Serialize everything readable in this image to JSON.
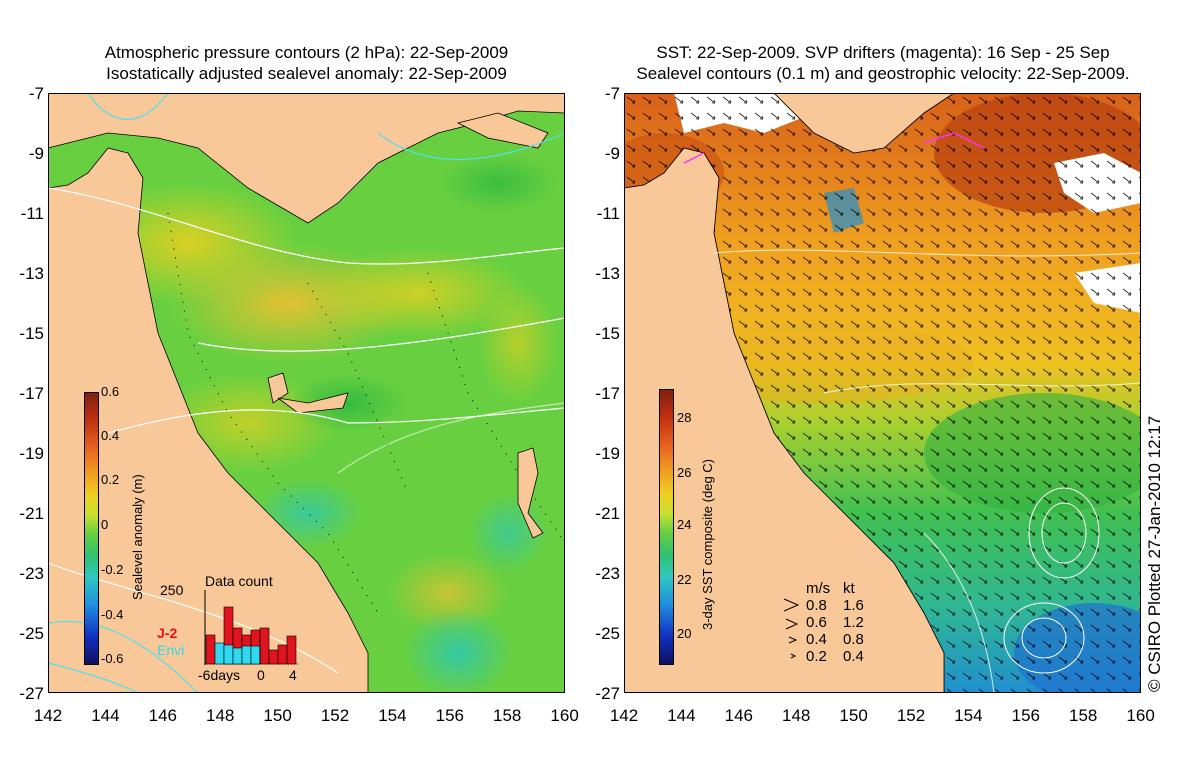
{
  "left_panel": {
    "title_line1": "Atmospheric pressure contours (2 hPa): 22-Sep-2009",
    "title_line2": "Isostatically adjusted sealevel anomaly: 22-Sep-2009",
    "colorbar": {
      "label": "Sealevel anomaly (m)",
      "ticks": [
        "0.6",
        "0.4",
        "0.2",
        "0",
        "-0.2",
        "-0.4",
        "-0.6"
      ]
    },
    "data_count": {
      "title": "Data count",
      "ymax_label": "250",
      "legend_j2": "J-2",
      "legend_envi": "Envi",
      "x_labels": [
        "-6days",
        "0",
        "4"
      ],
      "j2_color": "#e0141e",
      "envi_color": "#30d8f0"
    }
  },
  "right_panel": {
    "title_line1": "SST: 22-Sep-2009. SVP drifters (magenta): 16 Sep - 25 Sep",
    "title_line2": "Sealevel contours (0.1 m) and geostrophic velocity: 22-Sep-2009.",
    "colorbar": {
      "label": "3-day SST composite (deg C)",
      "ticks": [
        "28",
        "26",
        "24",
        "22",
        "20"
      ]
    },
    "velocity_key": {
      "header_ms": "m/s",
      "header_kt": "kt",
      "rows": [
        {
          "ms": "0.8",
          "kt": "1.6"
        },
        {
          "ms": "0.6",
          "kt": "1.2"
        },
        {
          "ms": "0.4",
          "kt": "0.8"
        },
        {
          "ms": "0.2",
          "kt": "0.4"
        }
      ]
    }
  },
  "axes": {
    "lat_labels": [
      "-7",
      "-9",
      "-11",
      "-13",
      "-15",
      "-17",
      "-19",
      "-21",
      "-23",
      "-25",
      "-27"
    ],
    "lon_labels": [
      "142",
      "144",
      "146",
      "148",
      "150",
      "152",
      "154",
      "156",
      "158",
      "160"
    ]
  },
  "copyright": "© CSIRO Plotted 27-Jan-2010 12:17",
  "colors": {
    "land": "#f8c898",
    "sea_green": "#60d040",
    "sst_orange": "#f0a020"
  }
}
